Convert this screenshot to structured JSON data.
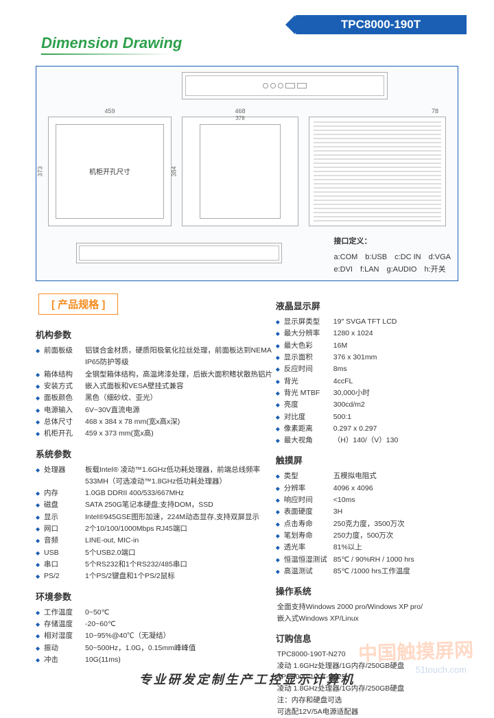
{
  "banner": "TPC8000-190T",
  "title": "Dimension Drawing",
  "diagram": {
    "dims": {
      "w1": "459",
      "w2": "468",
      "w3": "78",
      "h1": "373",
      "h2": "384",
      "w4": "378"
    },
    "front_label": "机柜开孔尺寸",
    "iface_title": "接口定义：",
    "iface_row1": "a:COM　b:USB　c:DC IN　d:VGA",
    "iface_row2": "e:DVI　f:LAN　g:AUDIO　h:开关"
  },
  "spec_title": "产品规格",
  "left": {
    "g1": {
      "head": "机构参数",
      "items": [
        {
          "l": "前面板级",
          "v": "铝镁合金材质，硬质阳极氧化拉丝处理，前面板达到NEMA IP65防护等级"
        },
        {
          "l": "箱体结构",
          "v": "全钢型箱体结构，高温烤漆处理，后嵌大面积鳍状散热铝片"
        },
        {
          "l": "安装方式",
          "v": "嵌入式面板和VESA壁挂式兼容"
        },
        {
          "l": "面板颜色",
          "v": "黑色（细砂纹、亚光）"
        },
        {
          "l": "电源输入",
          "v": "6V~30V直流电源"
        },
        {
          "l": "总体尺寸",
          "v": "468 x 384 x 78 mm(宽x高x深)"
        },
        {
          "l": "机柜开孔",
          "v": "459 x 373 mm(宽x高)"
        }
      ]
    },
    "g2": {
      "head": "系统参数",
      "items": [
        {
          "l": "处理器",
          "v": "板载Intel® 凌动™1.6GHz低功耗处理器，前端总线频率533MH（可选凌动™1.8GHz低功耗处理器）"
        },
        {
          "l": "内存",
          "v": "1.0GB DDRII 400/533/667MHz"
        },
        {
          "l": "磁盘",
          "v": "SATA 250G笔记本硬盘;支持DOM，SSD"
        },
        {
          "l": "显示",
          "v": "Intel®945GSE图形加速，224M动态显存,支持双屏显示"
        },
        {
          "l": "网口",
          "v": "2个10/100/1000Mbps RJ45端口"
        },
        {
          "l": "音频",
          "v": "LINE-out, MIC-in"
        },
        {
          "l": "USB",
          "v": "5个USB2.0端口"
        },
        {
          "l": "串口",
          "v": "5个RS232和1个RS232/485串口"
        },
        {
          "l": "PS/2",
          "v": "1个PS/2键盘和1个PS/2鼠标"
        }
      ]
    },
    "g3": {
      "head": "环境参数",
      "items": [
        {
          "l": "工作温度",
          "v": "0~50℃"
        },
        {
          "l": "存储温度",
          "v": "-20~60℃"
        },
        {
          "l": "相对湿度",
          "v": "10~95%@40℃（无凝结）"
        },
        {
          "l": "振动",
          "v": "50~500Hz，1.0G，0.15mm峰峰值"
        },
        {
          "l": "冲击",
          "v": "10G(11ms)"
        }
      ]
    }
  },
  "right": {
    "g1": {
      "head": "液晶显示屏",
      "items": [
        {
          "l": "显示屏类型",
          "v": "19″ SVGA TFT LCD"
        },
        {
          "l": "最大分辨率",
          "v": "1280 x 1024"
        },
        {
          "l": "最大色彩",
          "v": "16M"
        },
        {
          "l": "显示面积",
          "v": "376 x 301mm"
        },
        {
          "l": "反应时间",
          "v": "8ms"
        },
        {
          "l": "背光",
          "v": "4ccFL"
        },
        {
          "l": "背光 MTBF",
          "v": "30,000小时"
        },
        {
          "l": "亮度",
          "v": "300cd/m2"
        },
        {
          "l": "对比度",
          "v": "500:1"
        },
        {
          "l": "像素距离",
          "v": "0.297 x 0.297"
        },
        {
          "l": "最大视角",
          "v": "（H）140/（V）130"
        }
      ]
    },
    "g2": {
      "head": "触摸屏",
      "items": [
        {
          "l": "类型",
          "v": "五模拟电阻式"
        },
        {
          "l": "分辨率",
          "v": "4096 x 4096"
        },
        {
          "l": "响应时间",
          "v": "<10ms"
        },
        {
          "l": "表面硬度",
          "v": "3H"
        },
        {
          "l": "点击寿命",
          "v": "250克力度，3500万次"
        },
        {
          "l": "笔划寿命",
          "v": "250力度，500万次"
        },
        {
          "l": "透光率",
          "v": "81%以上"
        },
        {
          "l": "恒温恒湿测试",
          "v": "85℃ / 90%RH / 1000 hrs"
        },
        {
          "l": "高温测试",
          "v": "85℃ /1000 hrs工作温度"
        }
      ]
    },
    "g3": {
      "head": "操作系统",
      "plain": "全面支持Windows 2000 pro/Windows XP pro/\n嵌入式Windows XP/Linux"
    },
    "g4": {
      "head": "订购信息",
      "plain": "TPC8000-190T-N270\n凌动 1.6GHz处理器/1G内存/250GB硬盘\nTPC8000-190T-D525\n凌动 1.8GHz处理器/1G内存/250GB硬盘\n注：内存和硬盘可选\n可选配12V/5A电源适配器"
    }
  },
  "footer": "专业研发定制生产工控显示计算机",
  "wm_main": "中国触摸屏网",
  "wm_sub": "51touch.com"
}
